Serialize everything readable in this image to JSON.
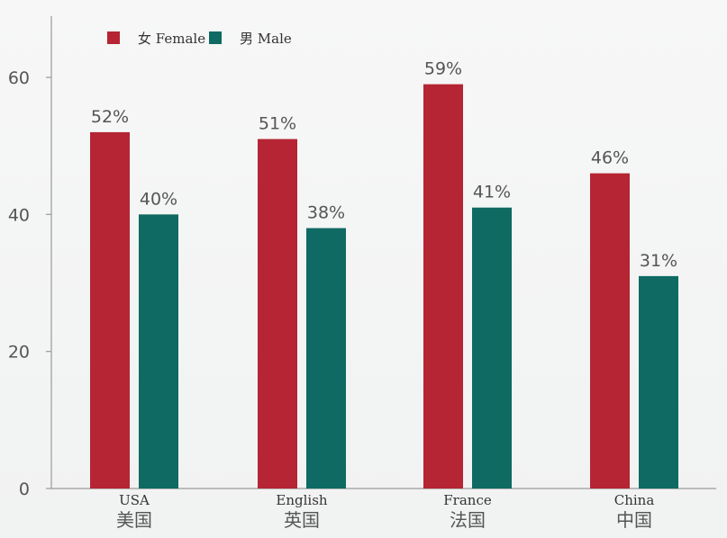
{
  "chart_data": {
    "type": "bar",
    "categories": [
      "USA",
      "English",
      "France",
      "China"
    ],
    "categories_cn": [
      "美国",
      "英国",
      "法国",
      "中国"
    ],
    "series": [
      {
        "name": "女 Female",
        "color": "#b52533",
        "values": [
          52,
          51,
          59,
          46
        ],
        "labels": [
          "52%",
          "51%",
          "59%",
          "46%"
        ]
      },
      {
        "name": "男 Male",
        "color": "#0e6a62",
        "values": [
          40,
          38,
          41,
          31
        ],
        "labels": [
          "40%",
          "38%",
          "41%",
          "31%"
        ]
      }
    ],
    "ylim": [
      0,
      70
    ],
    "yticks": [
      0,
      20,
      40,
      60
    ],
    "ytick_labels": [
      "0",
      "20",
      "40",
      "60"
    ],
    "legend_position": "top-left",
    "grid": false
  }
}
